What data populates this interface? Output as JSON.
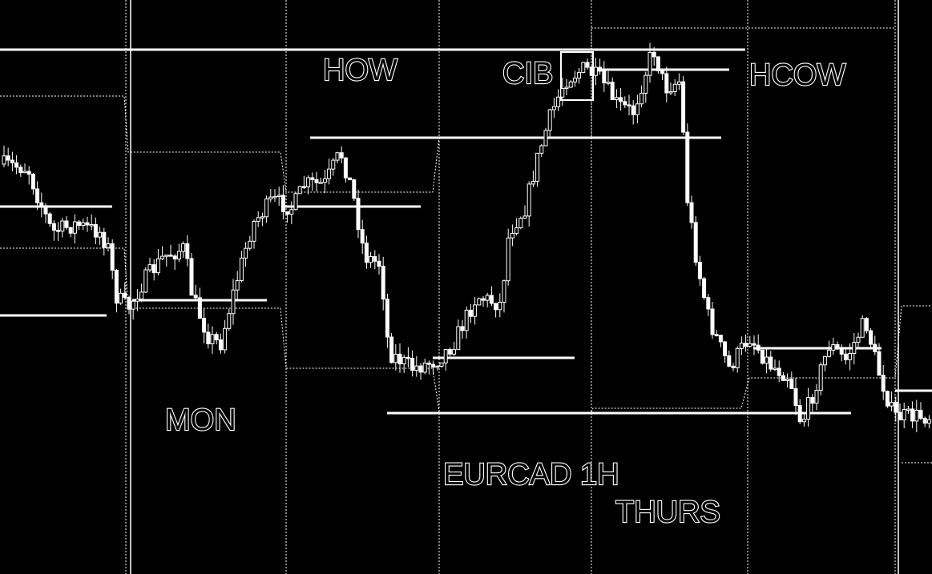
{
  "annotations": {
    "how": "HOW",
    "cib": "CIB",
    "hcow": "HCOW",
    "mon": "MON",
    "symbol": "EURCAD 1H",
    "thurs": "THURS"
  }
}
